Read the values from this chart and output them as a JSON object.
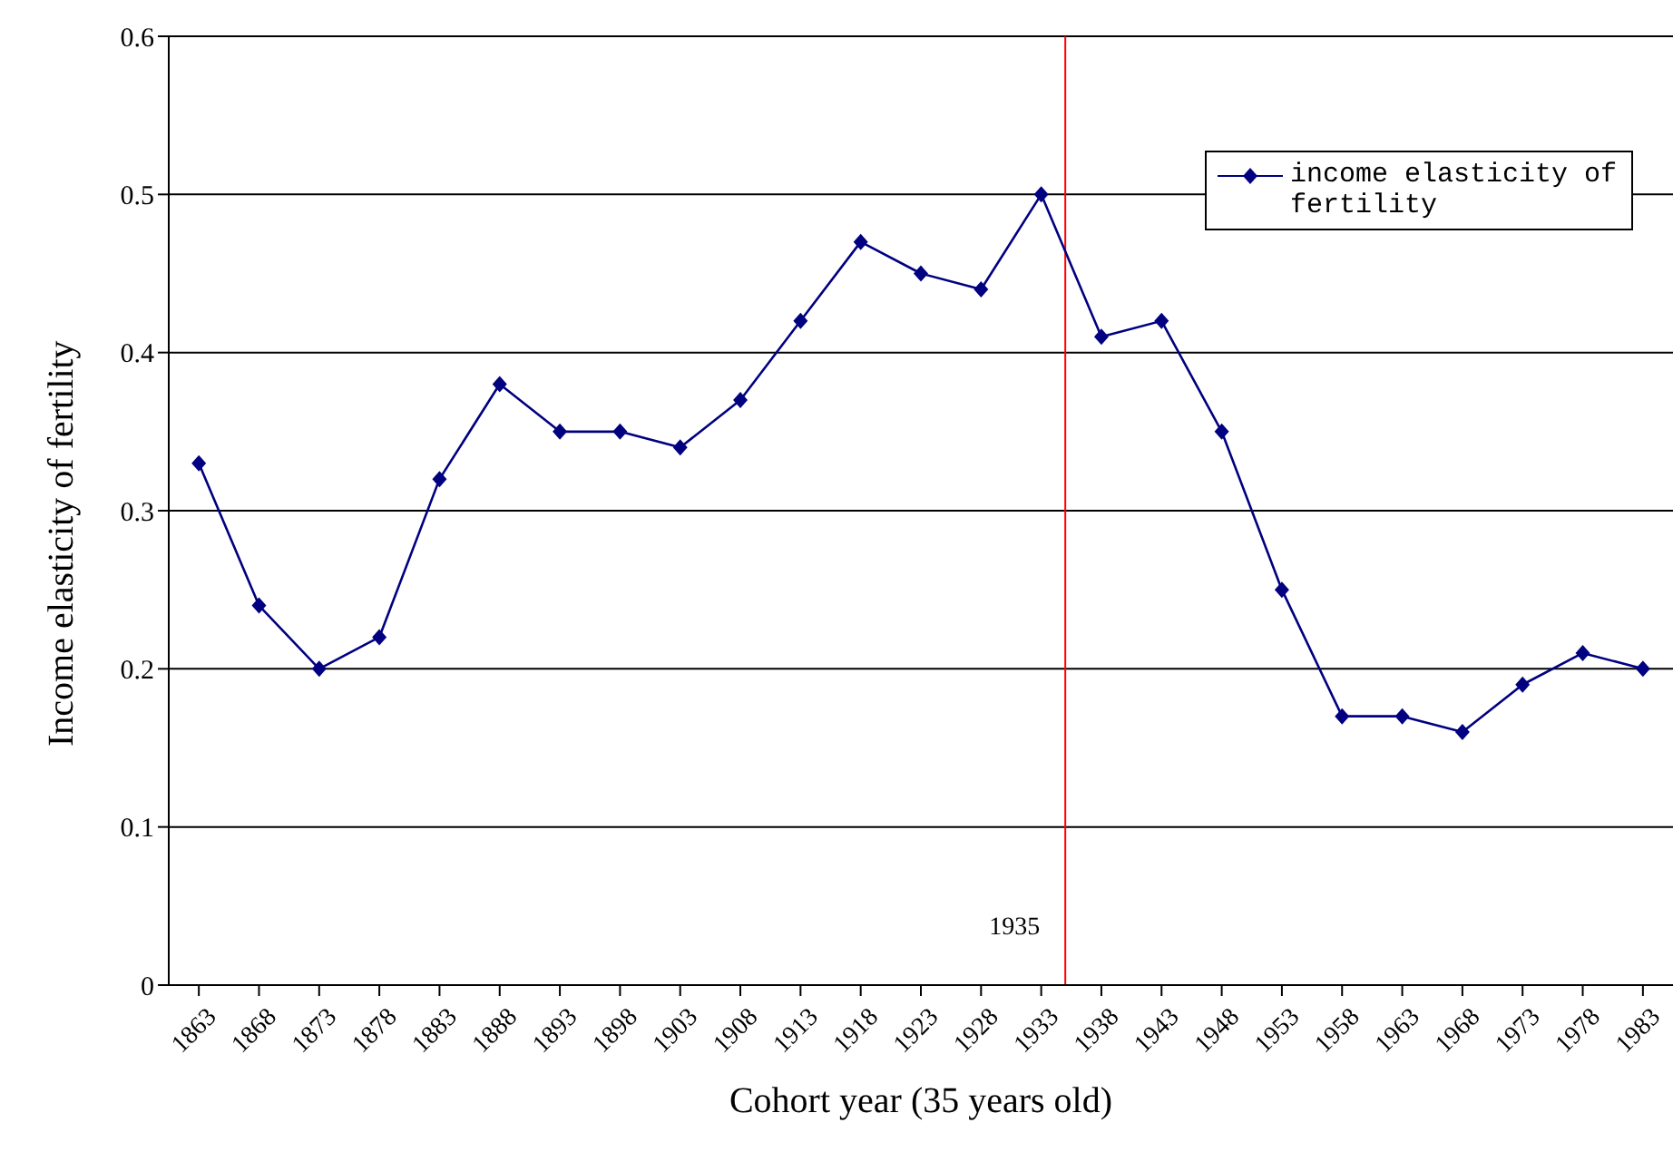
{
  "chart_data": {
    "type": "line",
    "xlabel": "Cohort year (35 years old)",
    "ylabel": "Income elasticity of fertility",
    "x": [
      1863,
      1868,
      1873,
      1878,
      1883,
      1888,
      1893,
      1898,
      1903,
      1908,
      1913,
      1918,
      1923,
      1928,
      1933,
      1938,
      1943,
      1948,
      1953,
      1958,
      1963,
      1968,
      1973,
      1978,
      1983
    ],
    "series": [
      {
        "name": "income elasticity of fertility",
        "color": "#000080",
        "values": [
          0.33,
          0.24,
          0.2,
          0.22,
          0.32,
          0.38,
          0.35,
          0.35,
          0.34,
          0.37,
          0.42,
          0.47,
          0.45,
          0.44,
          0.5,
          0.41,
          0.42,
          0.35,
          0.25,
          0.17,
          0.17,
          0.16,
          0.19,
          0.21,
          0.2
        ]
      }
    ],
    "xlim": [
      1860.5,
      1985.5
    ],
    "xticks": [
      1863,
      1868,
      1873,
      1878,
      1883,
      1888,
      1893,
      1898,
      1903,
      1908,
      1913,
      1918,
      1923,
      1928,
      1933,
      1938,
      1943,
      1948,
      1953,
      1958,
      1963,
      1968,
      1973,
      1978,
      1983
    ],
    "ylim": [
      0,
      0.6
    ],
    "yticks": [
      0,
      0.1,
      0.2,
      0.3,
      0.4,
      0.5,
      0.6
    ],
    "ref_lines": [
      {
        "axis": "x",
        "value": 1935,
        "label": "1935",
        "color": "#ff0000"
      }
    ],
    "grid": "y",
    "legend": "top right",
    "marker": "diamond",
    "line_style": "solid"
  }
}
